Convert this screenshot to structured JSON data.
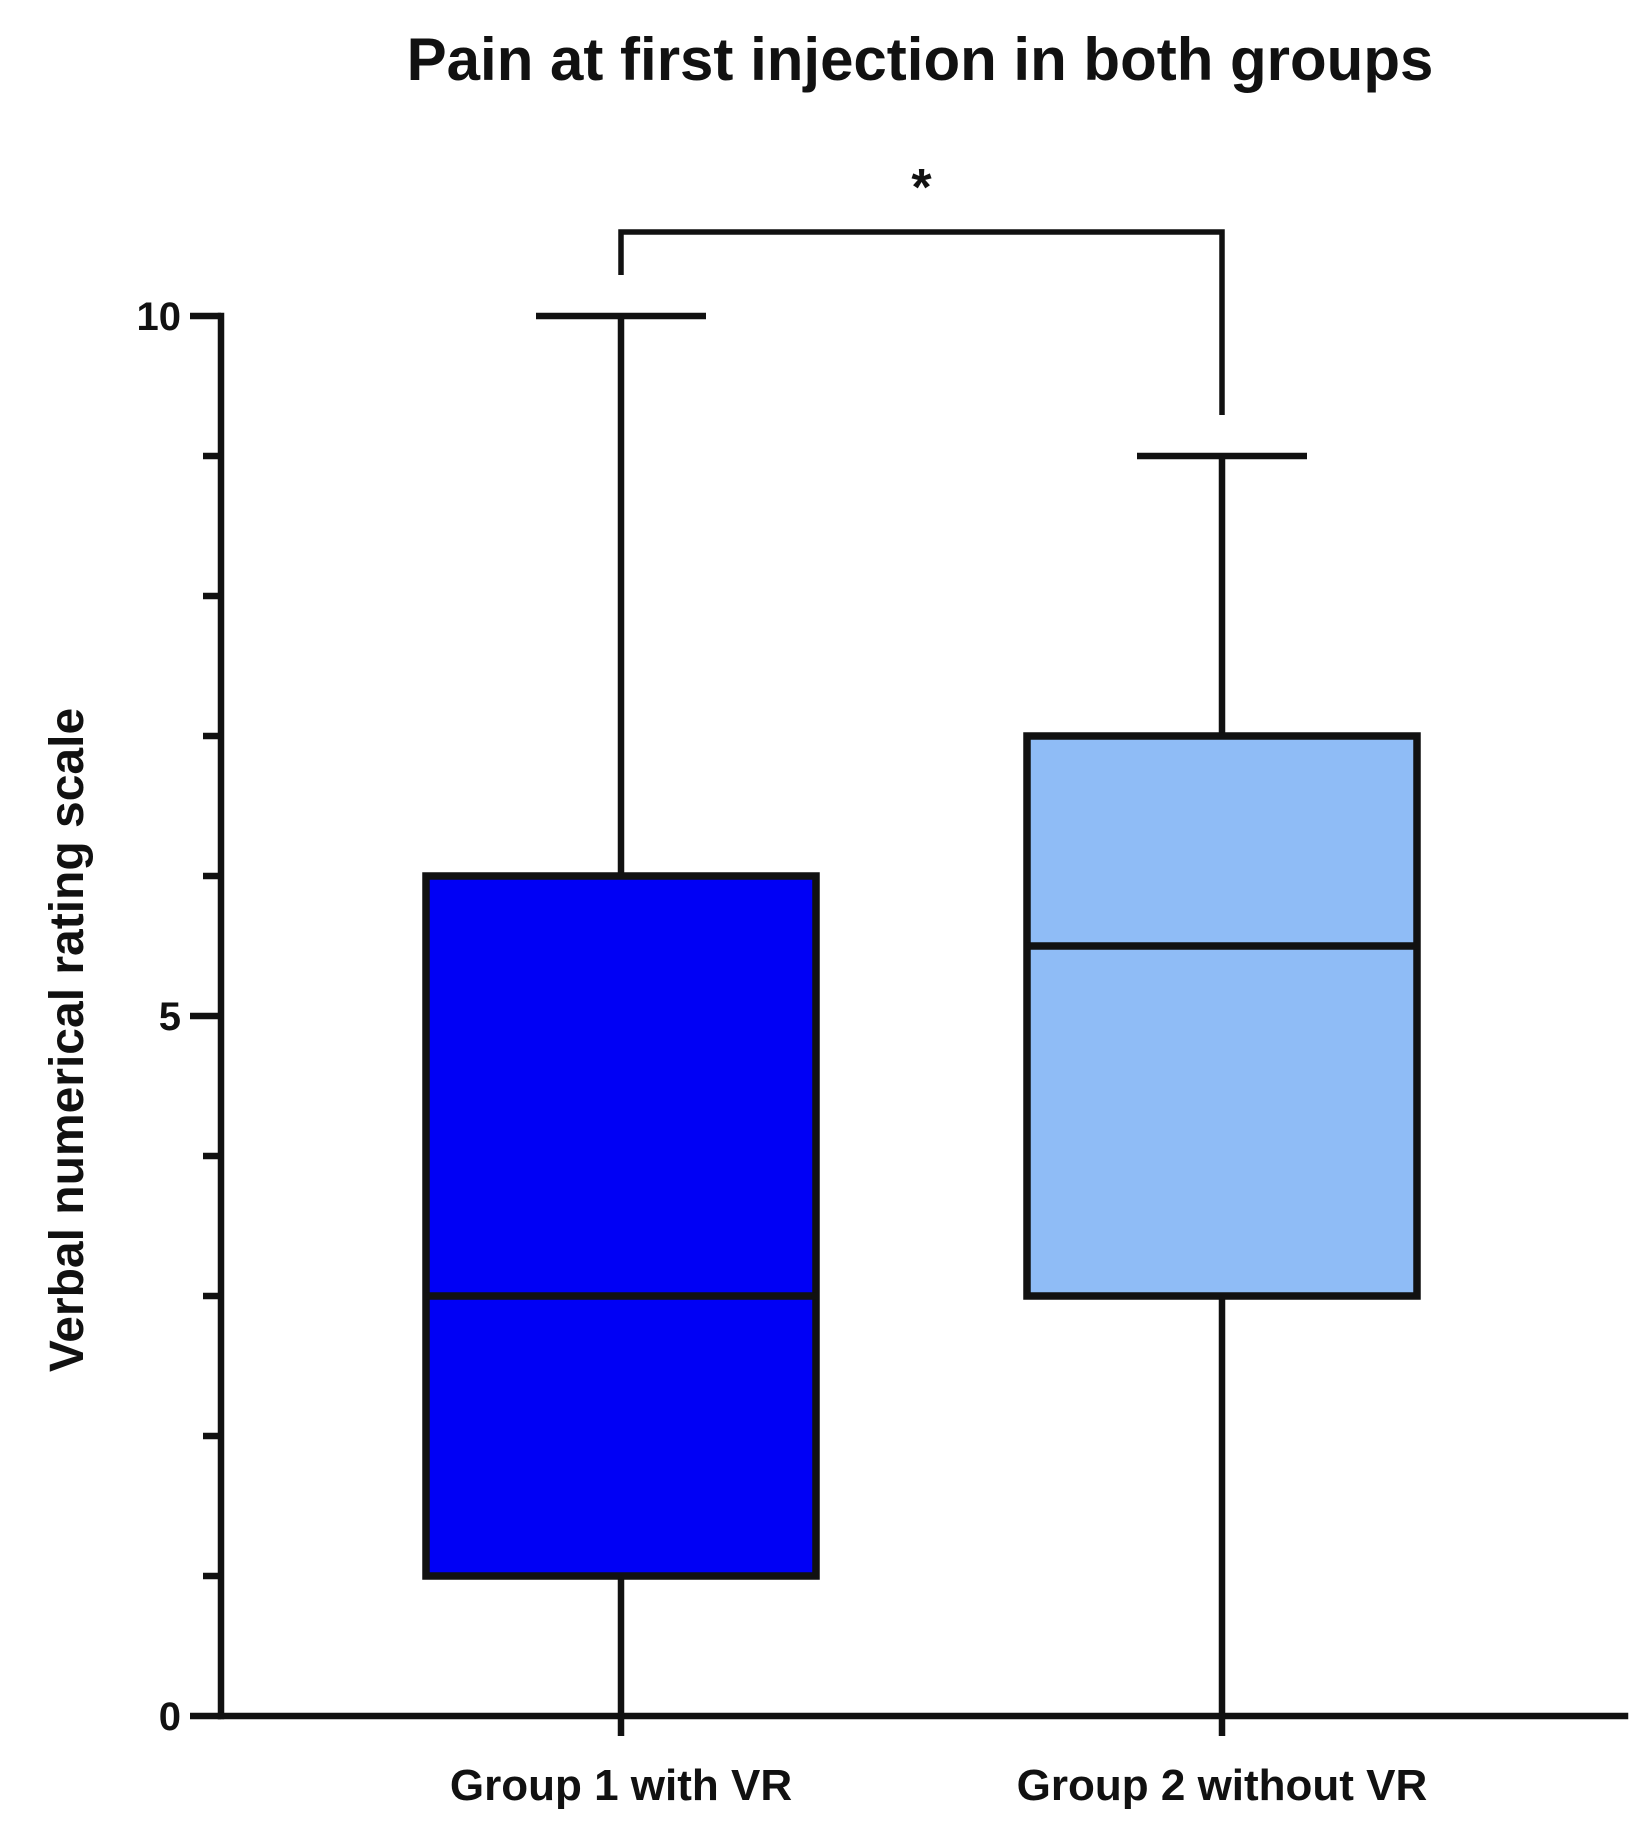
{
  "chart_data": {
    "type": "box",
    "title": "Pain at first injection in both groups",
    "xlabel": "",
    "ylabel": "Verbal numerical rating scale",
    "ylim": [
      0,
      10
    ],
    "yticks": [
      0,
      5,
      10
    ],
    "ytick_labels": [
      "0",
      "5",
      "10"
    ],
    "minor_yticks": [
      1,
      2,
      3,
      4,
      6,
      7,
      8,
      9
    ],
    "categories": [
      "Group 1 with VR",
      "Group 2 without VR"
    ],
    "boxes": [
      {
        "category": "Group 1 with VR",
        "min": 0,
        "q1": 1,
        "median": 3,
        "q3": 6,
        "max": 10,
        "color": "#0000F5"
      },
      {
        "category": "Group 2 without VR",
        "min": 0,
        "q1": 3,
        "median": 5.5,
        "q3": 7,
        "max": 9,
        "color": "#8FBCF6"
      }
    ],
    "significance": {
      "from": "Group 1 with VR",
      "to": "Group 2 without VR",
      "label": "*"
    },
    "grid": false,
    "legend": "none"
  }
}
